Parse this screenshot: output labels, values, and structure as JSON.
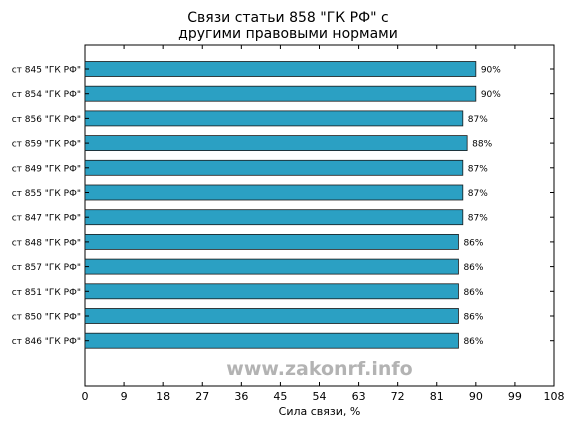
{
  "chart_data": {
    "type": "bar",
    "orientation": "horizontal",
    "title_lines": [
      "Связи статьи 858 \"ГК РФ\" с",
      "другими правовыми нормами"
    ],
    "xlabel": "Сила связи, %",
    "ylabel": "",
    "xlim": [
      0,
      108
    ],
    "xticks": [
      0,
      9,
      18,
      27,
      36,
      45,
      54,
      63,
      72,
      81,
      90,
      99,
      108
    ],
    "grid": false,
    "categories": [
      "ст 845 \"ГК РФ\"",
      "ст 854 \"ГК РФ\"",
      "ст 856 \"ГК РФ\"",
      "ст 859 \"ГК РФ\"",
      "ст 849 \"ГК РФ\"",
      "ст 855 \"ГК РФ\"",
      "ст 847 \"ГК РФ\"",
      "ст 848 \"ГК РФ\"",
      "ст 857 \"ГК РФ\"",
      "ст 851 \"ГК РФ\"",
      "ст 850 \"ГК РФ\"",
      "ст 846 \"ГК РФ\""
    ],
    "values": [
      90,
      90,
      87,
      88,
      87,
      87,
      87,
      86,
      86,
      86,
      86,
      86
    ],
    "value_labels": [
      "90%",
      "90%",
      "87%",
      "88%",
      "87%",
      "87%",
      "87%",
      "86%",
      "86%",
      "86%",
      "86%",
      "86%"
    ],
    "bar_color": "#2ba0c3"
  },
  "watermark": "www.zakonrf.info"
}
